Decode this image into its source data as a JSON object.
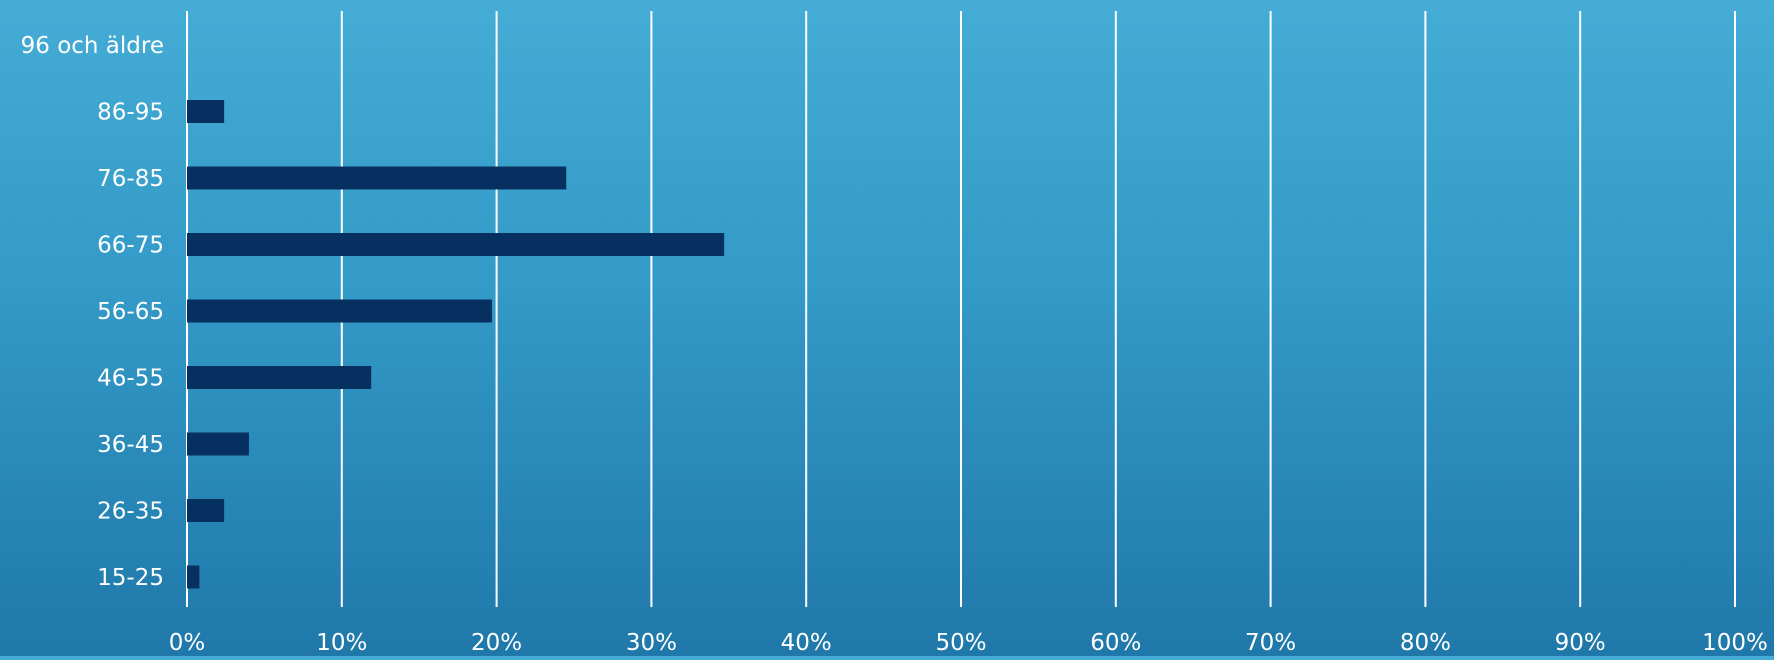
{
  "chart_data": {
    "type": "bar",
    "orientation": "horizontal",
    "title": "",
    "xlabel": "",
    "ylabel": "",
    "categories": [
      "96 och äldre",
      "86-95",
      "76-85",
      "66-75",
      "56-65",
      "46-55",
      "36-45",
      "26-35",
      "15-25"
    ],
    "values": [
      0,
      2.4,
      24.5,
      34.7,
      19.7,
      11.9,
      4.0,
      2.4,
      0.8
    ],
    "xlim": [
      0,
      100
    ],
    "x_ticks": [
      "0%",
      "10%",
      "20%",
      "30%",
      "40%",
      "50%",
      "60%",
      "70%",
      "80%",
      "90%",
      "100%"
    ],
    "grid": "vertical",
    "legend": "none",
    "bar_color": "#06305f",
    "gridline_color": "#ffffff",
    "text_color": "#ffffff"
  }
}
